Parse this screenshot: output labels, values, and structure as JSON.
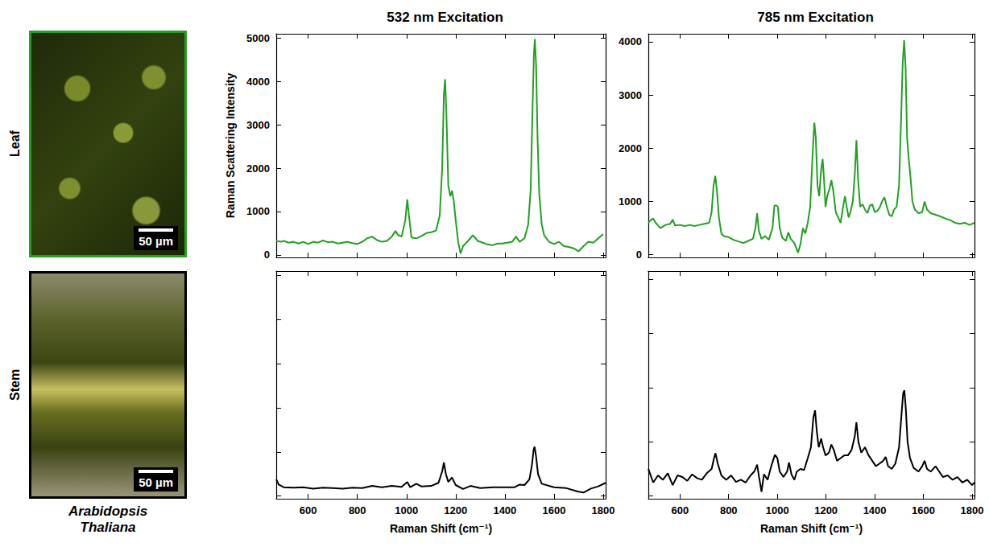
{
  "rows": [
    "Leaf",
    "Stem"
  ],
  "species": "Arabidopsis Thaliana",
  "scale_bar": "50 µm",
  "chart_data": [
    {
      "type": "line",
      "title": "532 nm Excitation",
      "y_label": "Raman Scattering Intensity",
      "color": "#22a022",
      "xlim": [
        470,
        1810
      ],
      "xticks": [
        600,
        800,
        1000,
        1200,
        1400,
        1600,
        1800
      ],
      "ylim": [
        -60,
        5100
      ],
      "yticks": [
        0,
        1000,
        2000,
        3000,
        4000,
        5000
      ],
      "tick_labels": "y",
      "grid": false,
      "x": [
        470,
        490,
        500,
        520,
        540,
        560,
        580,
        600,
        620,
        640,
        660,
        680,
        700,
        720,
        740,
        760,
        780,
        800,
        820,
        840,
        860,
        880,
        900,
        920,
        940,
        955,
        965,
        980,
        995,
        1003,
        1010,
        1020,
        1040,
        1060,
        1080,
        1100,
        1120,
        1135,
        1145,
        1152,
        1157,
        1162,
        1170,
        1178,
        1185,
        1192,
        1200,
        1210,
        1220,
        1230,
        1250,
        1270,
        1290,
        1310,
        1330,
        1350,
        1370,
        1390,
        1410,
        1430,
        1445,
        1460,
        1480,
        1495,
        1505,
        1512,
        1518,
        1522,
        1527,
        1533,
        1540,
        1550,
        1560,
        1580,
        1600,
        1620,
        1640,
        1660,
        1680,
        1700,
        1720,
        1740,
        1760,
        1780,
        1800
      ],
      "values": [
        320,
        300,
        320,
        280,
        300,
        260,
        300,
        250,
        300,
        280,
        330,
        290,
        300,
        260,
        280,
        300,
        270,
        250,
        300,
        380,
        420,
        340,
        300,
        320,
        420,
        550,
        460,
        420,
        800,
        1280,
        900,
        400,
        380,
        430,
        500,
        520,
        560,
        900,
        2000,
        3700,
        4050,
        3300,
        1600,
        1350,
        1480,
        1250,
        800,
        300,
        30,
        200,
        320,
        450,
        320,
        280,
        240,
        220,
        260,
        260,
        280,
        300,
        420,
        300,
        380,
        700,
        1500,
        3200,
        4600,
        4980,
        4400,
        2700,
        1400,
        700,
        450,
        300,
        250,
        300,
        200,
        180,
        150,
        80,
        200,
        300,
        280,
        380,
        480
      ]
    },
    {
      "type": "line",
      "title": "785 nm Excitation",
      "color": "#22a022",
      "xlim": [
        470,
        1810
      ],
      "xticks": [
        600,
        800,
        1000,
        1200,
        1400,
        1600,
        1800
      ],
      "ylim": [
        -50,
        4150
      ],
      "yticks": [
        0,
        1000,
        2000,
        3000,
        4000
      ],
      "tick_labels": "y",
      "grid": false,
      "x": [
        470,
        480,
        490,
        500,
        520,
        540,
        560,
        570,
        580,
        600,
        620,
        640,
        660,
        680,
        700,
        720,
        730,
        738,
        745,
        752,
        760,
        770,
        780,
        800,
        820,
        840,
        860,
        880,
        900,
        910,
        917,
        924,
        935,
        950,
        965,
        980,
        988,
        995,
        1002,
        1010,
        1020,
        1035,
        1045,
        1055,
        1070,
        1085,
        1095,
        1105,
        1115,
        1125,
        1135,
        1145,
        1152,
        1158,
        1165,
        1172,
        1180,
        1186,
        1192,
        1198,
        1205,
        1215,
        1222,
        1230,
        1240,
        1250,
        1260,
        1270,
        1278,
        1285,
        1293,
        1300,
        1310,
        1318,
        1325,
        1332,
        1340,
        1350,
        1360,
        1370,
        1380,
        1390,
        1400,
        1410,
        1420,
        1430,
        1440,
        1450,
        1460,
        1470,
        1480,
        1490,
        1500,
        1508,
        1515,
        1521,
        1527,
        1533,
        1540,
        1548,
        1555,
        1565,
        1580,
        1595,
        1605,
        1615,
        1630,
        1650,
        1670,
        1690,
        1710,
        1730,
        1750,
        1770,
        1790,
        1810
      ],
      "values": [
        600,
        650,
        680,
        600,
        500,
        560,
        580,
        660,
        550,
        560,
        540,
        560,
        540,
        560,
        580,
        600,
        800,
        1300,
        1480,
        1200,
        700,
        400,
        350,
        330,
        280,
        250,
        220,
        260,
        300,
        500,
        780,
        450,
        300,
        350,
        280,
        500,
        920,
        930,
        900,
        500,
        320,
        260,
        420,
        300,
        220,
        40,
        200,
        500,
        400,
        600,
        900,
        1900,
        2480,
        2200,
        1300,
        1100,
        1600,
        1800,
        1400,
        900,
        1100,
        1250,
        1400,
        1200,
        800,
        700,
        600,
        900,
        1100,
        900,
        700,
        800,
        1000,
        1500,
        2150,
        1400,
        900,
        950,
        850,
        780,
        920,
        950,
        800,
        820,
        880,
        1000,
        1080,
        900,
        750,
        720,
        850,
        900,
        1300,
        2500,
        3600,
        4030,
        3500,
        2200,
        1800,
        1400,
        1000,
        850,
        780,
        800,
        1000,
        850,
        780,
        750,
        720,
        680,
        650,
        600,
        580,
        600,
        560,
        600
      ]
    },
    {
      "type": "line",
      "x_label": "Raman Shift (cm⁻¹)",
      "color": "#000000",
      "xlim": [
        470,
        1810
      ],
      "xticks": [
        600,
        800,
        1000,
        1200,
        1400,
        1600,
        1800
      ],
      "ylim": [
        -60,
        5100
      ],
      "yticks": [
        0,
        1000,
        2000,
        3000,
        4000,
        5000
      ],
      "tick_labels": "x",
      "grid": false,
      "x": [
        470,
        480,
        500,
        540,
        580,
        620,
        660,
        700,
        740,
        780,
        820,
        860,
        900,
        940,
        980,
        1003,
        1015,
        1040,
        1060,
        1100,
        1130,
        1145,
        1152,
        1160,
        1170,
        1185,
        1200,
        1230,
        1260,
        1300,
        1350,
        1400,
        1440,
        1460,
        1480,
        1500,
        1510,
        1517,
        1521,
        1527,
        1535,
        1550,
        1600,
        1650,
        1700,
        1720,
        1750,
        1780,
        1810
      ],
      "values": [
        380,
        260,
        200,
        190,
        200,
        170,
        190,
        180,
        170,
        190,
        180,
        230,
        200,
        230,
        210,
        320,
        200,
        280,
        220,
        230,
        300,
        560,
        760,
        500,
        320,
        420,
        250,
        160,
        230,
        180,
        200,
        200,
        200,
        260,
        250,
        380,
        700,
        1050,
        1120,
        900,
        500,
        280,
        200,
        180,
        100,
        80,
        170,
        220,
        300
      ]
    },
    {
      "type": "line",
      "x_label": "Raman Shift (cm⁻¹)",
      "color": "#000000",
      "xlim": [
        470,
        1810
      ],
      "xticks": [
        600,
        800,
        1000,
        1200,
        1400,
        1600,
        1800
      ],
      "ylim": [
        -50,
        4150
      ],
      "yticks": [
        0,
        1000,
        2000,
        3000,
        4000
      ],
      "tick_labels": "x",
      "grid": false,
      "x": [
        470,
        490,
        510,
        530,
        550,
        570,
        590,
        610,
        630,
        650,
        670,
        690,
        710,
        730,
        740,
        746,
        755,
        770,
        790,
        810,
        830,
        850,
        870,
        890,
        905,
        917,
        925,
        935,
        945,
        960,
        975,
        990,
        1000,
        1010,
        1025,
        1040,
        1048,
        1058,
        1070,
        1080,
        1095,
        1110,
        1125,
        1138,
        1148,
        1155,
        1162,
        1170,
        1180,
        1188,
        1198,
        1212,
        1222,
        1232,
        1245,
        1260,
        1275,
        1290,
        1305,
        1318,
        1325,
        1333,
        1345,
        1360,
        1375,
        1390,
        1405,
        1420,
        1435,
        1445,
        1455,
        1470,
        1485,
        1500,
        1510,
        1517,
        1522,
        1528,
        1535,
        1545,
        1560,
        1580,
        1595,
        1605,
        1615,
        1630,
        1650,
        1665,
        1680,
        1700,
        1720,
        1740,
        1760,
        1780,
        1800,
        1810
      ],
      "values": [
        500,
        250,
        380,
        300,
        420,
        200,
        380,
        350,
        280,
        400,
        330,
        300,
        420,
        500,
        700,
        790,
        600,
        380,
        300,
        380,
        260,
        300,
        250,
        380,
        450,
        580,
        350,
        80,
        400,
        300,
        550,
        760,
        700,
        450,
        350,
        450,
        620,
        400,
        300,
        450,
        500,
        480,
        700,
        900,
        1450,
        1580,
        1200,
        900,
        1060,
        900,
        750,
        800,
        950,
        850,
        650,
        700,
        750,
        750,
        850,
        1100,
        1360,
        1000,
        800,
        900,
        750,
        650,
        550,
        600,
        650,
        720,
        550,
        500,
        600,
        900,
        1500,
        1900,
        1950,
        1600,
        1000,
        700,
        520,
        450,
        550,
        650,
        500,
        450,
        550,
        450,
        350,
        380,
        300,
        350,
        250,
        300,
        200,
        250
      ]
    }
  ]
}
